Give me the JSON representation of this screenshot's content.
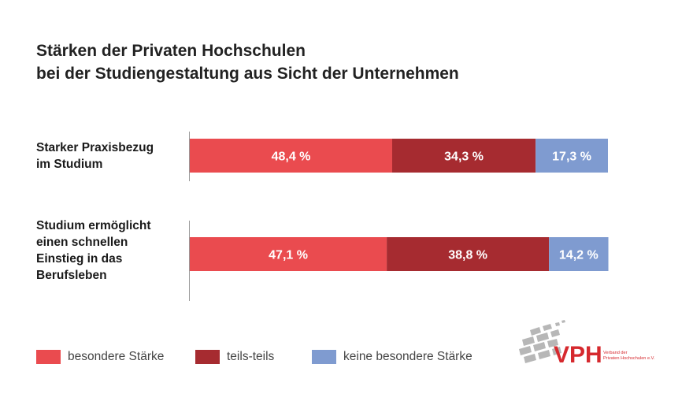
{
  "title": {
    "line1": "Stärken der Privaten Hochschulen",
    "line2": "bei der Studiengestaltung aus Sicht der Unternehmen"
  },
  "colors": {
    "besondere_staerke": "#ea4b4f",
    "teils_teils": "#a62b30",
    "keine_besondere_staerke": "#7f9bd0"
  },
  "chart_data": {
    "type": "bar",
    "orientation": "horizontal",
    "stacked": true,
    "title": "Stärken der Privaten Hochschulen bei der Studiengestaltung aus Sicht der Unternehmen",
    "categories": [
      [
        "Starker Praxisbezug",
        "im Studium"
      ],
      [
        "Studium ermöglicht",
        "einen schnellen",
        "Einstieg in das",
        "Berufsleben"
      ]
    ],
    "series": [
      {
        "name": "besondere Stärke",
        "values": [
          48.4,
          47.1
        ],
        "labels": [
          "48,4 %",
          "47,1 %"
        ]
      },
      {
        "name": "teils-teils",
        "values": [
          34.3,
          38.8
        ],
        "labels": [
          "34,3 %",
          "38,8 %"
        ]
      },
      {
        "name": "keine besondere Stärke",
        "values": [
          17.3,
          14.2
        ],
        "labels": [
          "17,3 %",
          "14,2 %"
        ]
      }
    ],
    "xlim": [
      0,
      100
    ],
    "grid": false,
    "legend_position": "bottom-left"
  },
  "legend": [
    {
      "label": "besondere Stärke",
      "color": "#ea4b4f"
    },
    {
      "label": "teils-teils",
      "color": "#a62b30"
    },
    {
      "label": "keine besondere Stärke",
      "color": "#7f9bd0"
    }
  ],
  "logo": {
    "text": "VPH",
    "subtitle_line1": "Verband der",
    "subtitle_line2": "Privaten Hochschulen e.V."
  }
}
